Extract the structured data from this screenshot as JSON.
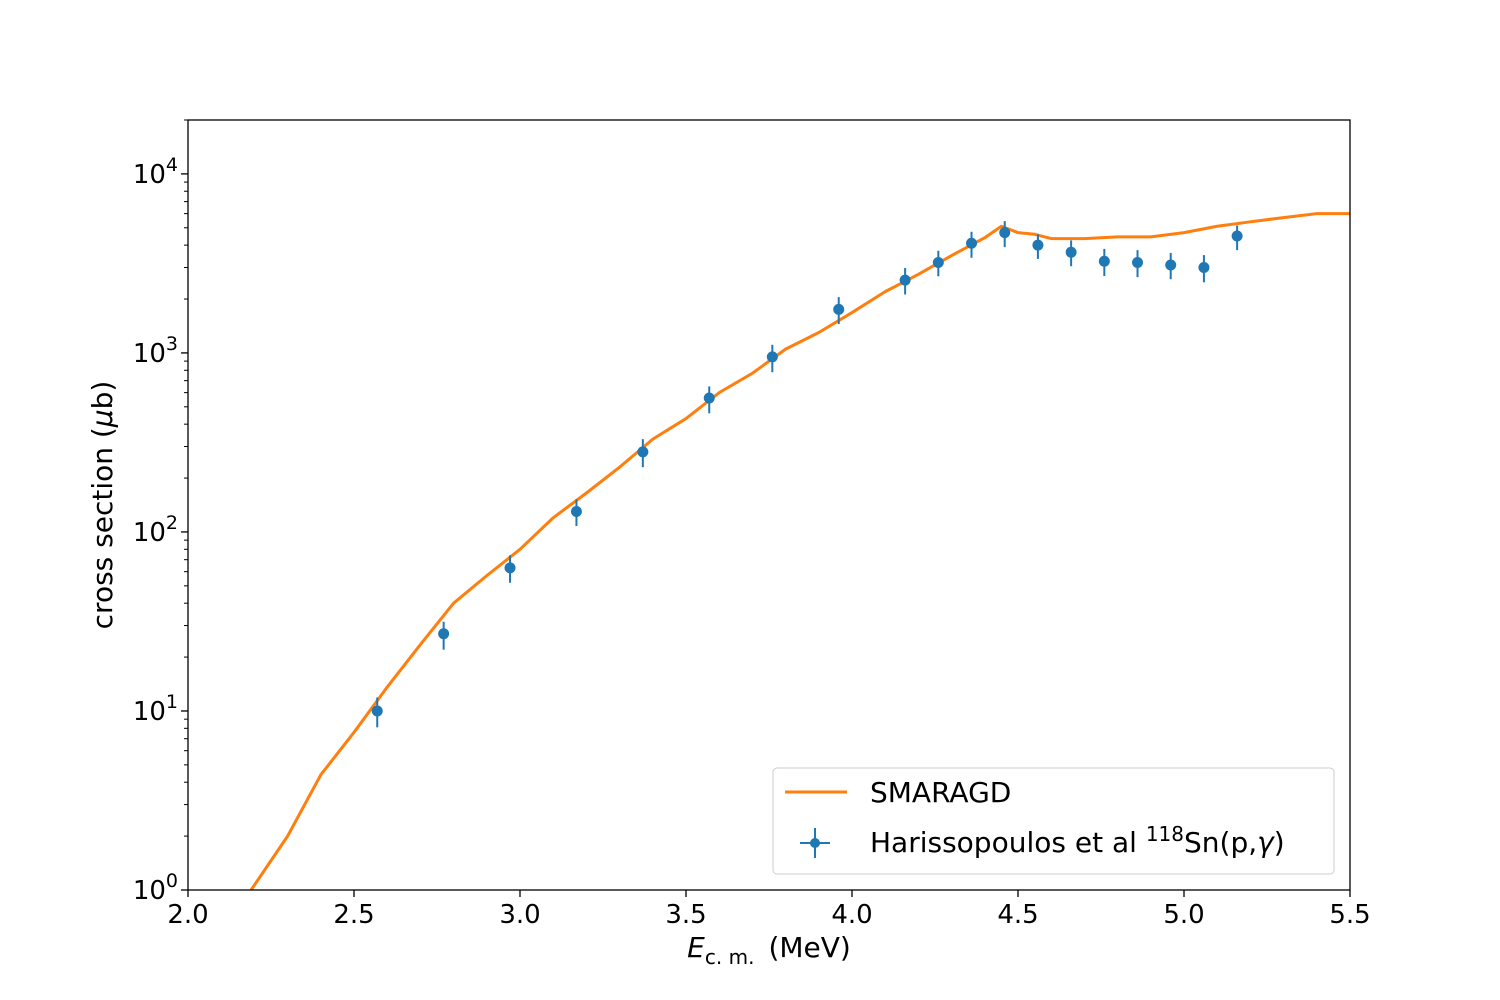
{
  "chart_data": {
    "type": "scatter",
    "xlabel": {
      "main": "E",
      "sub": "c. m.",
      "unit": "(MeV)"
    },
    "ylabel": {
      "prefix": "cross section (",
      "mu": "μ",
      "suffix": "b)"
    },
    "xlim": [
      2.0,
      5.5
    ],
    "ylim": [
      1,
      20000
    ],
    "yscale": "log",
    "xticks": [
      {
        "value": 2.0,
        "label": "2.0"
      },
      {
        "value": 2.5,
        "label": "2.5"
      },
      {
        "value": 3.0,
        "label": "3.0"
      },
      {
        "value": 3.5,
        "label": "3.5"
      },
      {
        "value": 4.0,
        "label": "4.0"
      },
      {
        "value": 4.5,
        "label": "4.5"
      },
      {
        "value": 5.0,
        "label": "5.0"
      },
      {
        "value": 5.5,
        "label": "5.5"
      }
    ],
    "yticks": [
      {
        "value": 1,
        "base": "10",
        "exp": "0"
      },
      {
        "value": 10,
        "base": "10",
        "exp": "1"
      },
      {
        "value": 100,
        "base": "10",
        "exp": "2"
      },
      {
        "value": 1000,
        "base": "10",
        "exp": "3"
      },
      {
        "value": 10000,
        "base": "10",
        "exp": "4"
      }
    ],
    "legend_position": "lower-right",
    "series": [
      {
        "name": "SMARAGD",
        "kind": "line",
        "color": "#ff7f0e",
        "x": [
          2.19,
          2.3,
          2.4,
          2.5,
          2.6,
          2.7,
          2.8,
          2.9,
          3.0,
          3.1,
          3.2,
          3.3,
          3.4,
          3.5,
          3.6,
          3.7,
          3.8,
          3.9,
          4.0,
          4.1,
          4.2,
          4.3,
          4.4,
          4.45,
          4.5,
          4.55,
          4.6,
          4.7,
          4.8,
          4.9,
          5.0,
          5.1,
          5.2,
          5.3,
          5.4,
          5.5
        ],
        "y": [
          1.0,
          2.0,
          4.4,
          7.6,
          13.6,
          23.5,
          40.0,
          57.0,
          80.0,
          120.0,
          165.0,
          230.0,
          330.0,
          430.0,
          600.0,
          770.0,
          1050.0,
          1300.0,
          1680.0,
          2200.0,
          2750.0,
          3500.0,
          4400.0,
          5100.0,
          4700.0,
          4600.0,
          4350.0,
          4350.0,
          4450.0,
          4450.0,
          4700.0,
          5100.0,
          5400.0,
          5700.0,
          6000.0,
          6000.0
        ]
      },
      {
        "name_prefix": "Harissopoulos et al ",
        "name_sup": "118",
        "name_mid": "Sn(p,",
        "name_gamma": "γ",
        "name_suffix": ")",
        "kind": "errorbar",
        "color": "#1f77b4",
        "x": [
          2.57,
          2.77,
          2.97,
          3.17,
          3.37,
          3.57,
          3.76,
          3.96,
          4.16,
          4.26,
          4.36,
          4.46,
          4.56,
          4.66,
          4.76,
          4.86,
          4.96,
          5.06,
          5.16
        ],
        "y": [
          10.0,
          27.0,
          63.0,
          130.0,
          280.0,
          560.0,
          950.0,
          1750.0,
          2550.0,
          3200.0,
          4100.0,
          4700.0,
          4000.0,
          3650.0,
          3250.0,
          3200.0,
          3100.0,
          3000.0,
          4500.0
        ],
        "yerr_low": [
          1.9,
          5.0,
          11.0,
          22.0,
          50.0,
          100.0,
          170.0,
          300.0,
          430.0,
          520.0,
          700.0,
          800.0,
          650.0,
          600.0,
          560.0,
          550.0,
          520.0,
          520.0,
          750.0
        ],
        "yerr_high": [
          1.9,
          4.5,
          11.0,
          22.0,
          50.0,
          90.0,
          160.0,
          300.0,
          430.0,
          520.0,
          650.0,
          750.0,
          600.0,
          600.0,
          560.0,
          550.0,
          520.0,
          520.0,
          650.0
        ]
      }
    ]
  }
}
